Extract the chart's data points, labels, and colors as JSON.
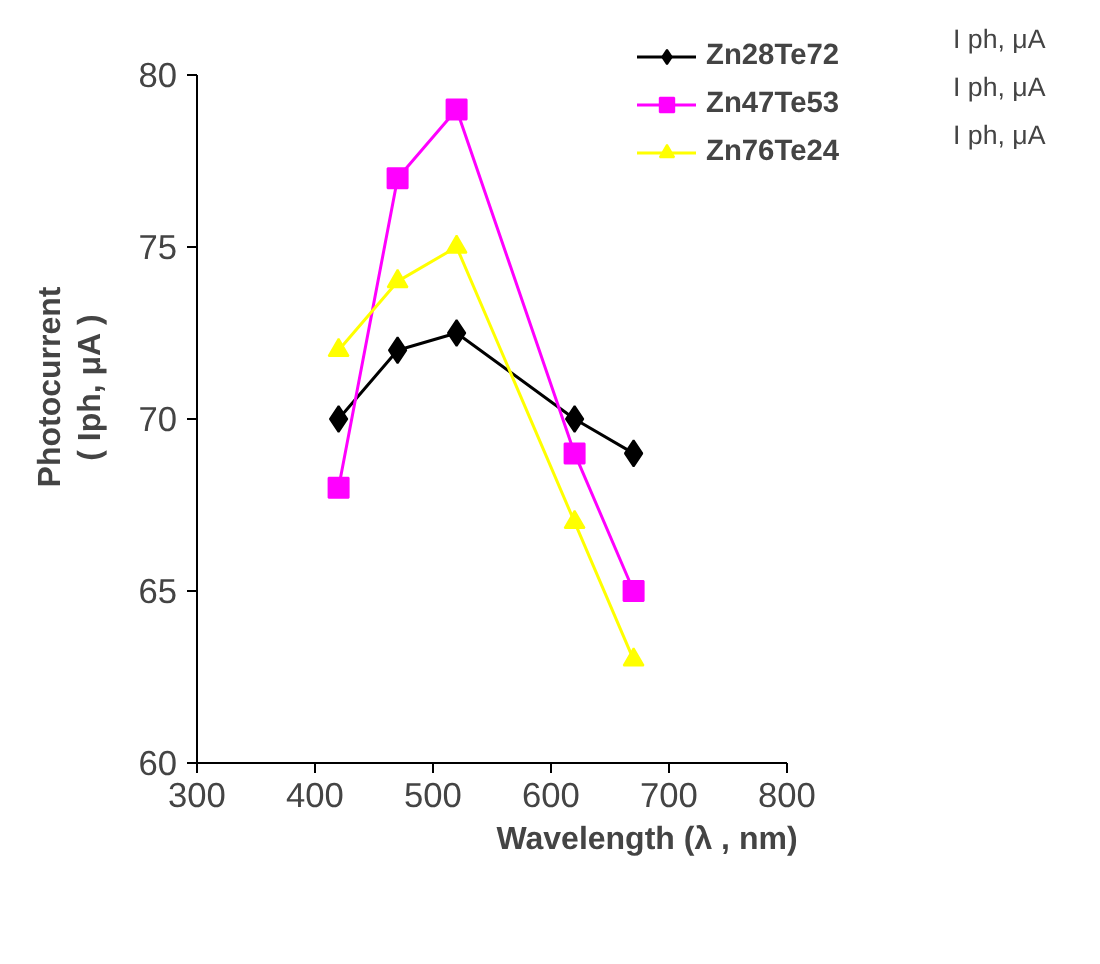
{
  "chart_data": {
    "type": "line",
    "xlabel": "Wavelength (λ , nm)",
    "ylabel": "Photocurrent\n( Iph, μA )",
    "xlim": [
      300,
      800
    ],
    "xticks": [
      300,
      400,
      500,
      600,
      700,
      800
    ],
    "ylim": [
      60,
      80
    ],
    "yticks": [
      60,
      65,
      70,
      75,
      80
    ],
    "grid": false,
    "legend": "top right",
    "line_style": "solid",
    "annotations": [
      "I ph,  μA",
      "I ph,  μA",
      "I ph,  μA"
    ],
    "series": [
      {
        "name": "Zn28Te72",
        "color": "#000000",
        "marker": "diamond",
        "x": [
          420,
          470,
          520,
          620,
          670
        ],
        "values": [
          70,
          72,
          72.5,
          70,
          69
        ]
      },
      {
        "name": "Zn47Te53",
        "color": "#ff00ff",
        "marker": "square",
        "x": [
          420,
          470,
          520,
          620,
          670
        ],
        "values": [
          68,
          77,
          79,
          69,
          65
        ]
      },
      {
        "name": "Zn76Te24",
        "color": "#ffff00",
        "marker": "triangle",
        "x": [
          420,
          470,
          520,
          620,
          670
        ],
        "values": [
          72,
          74,
          75,
          67,
          63
        ]
      }
    ]
  }
}
